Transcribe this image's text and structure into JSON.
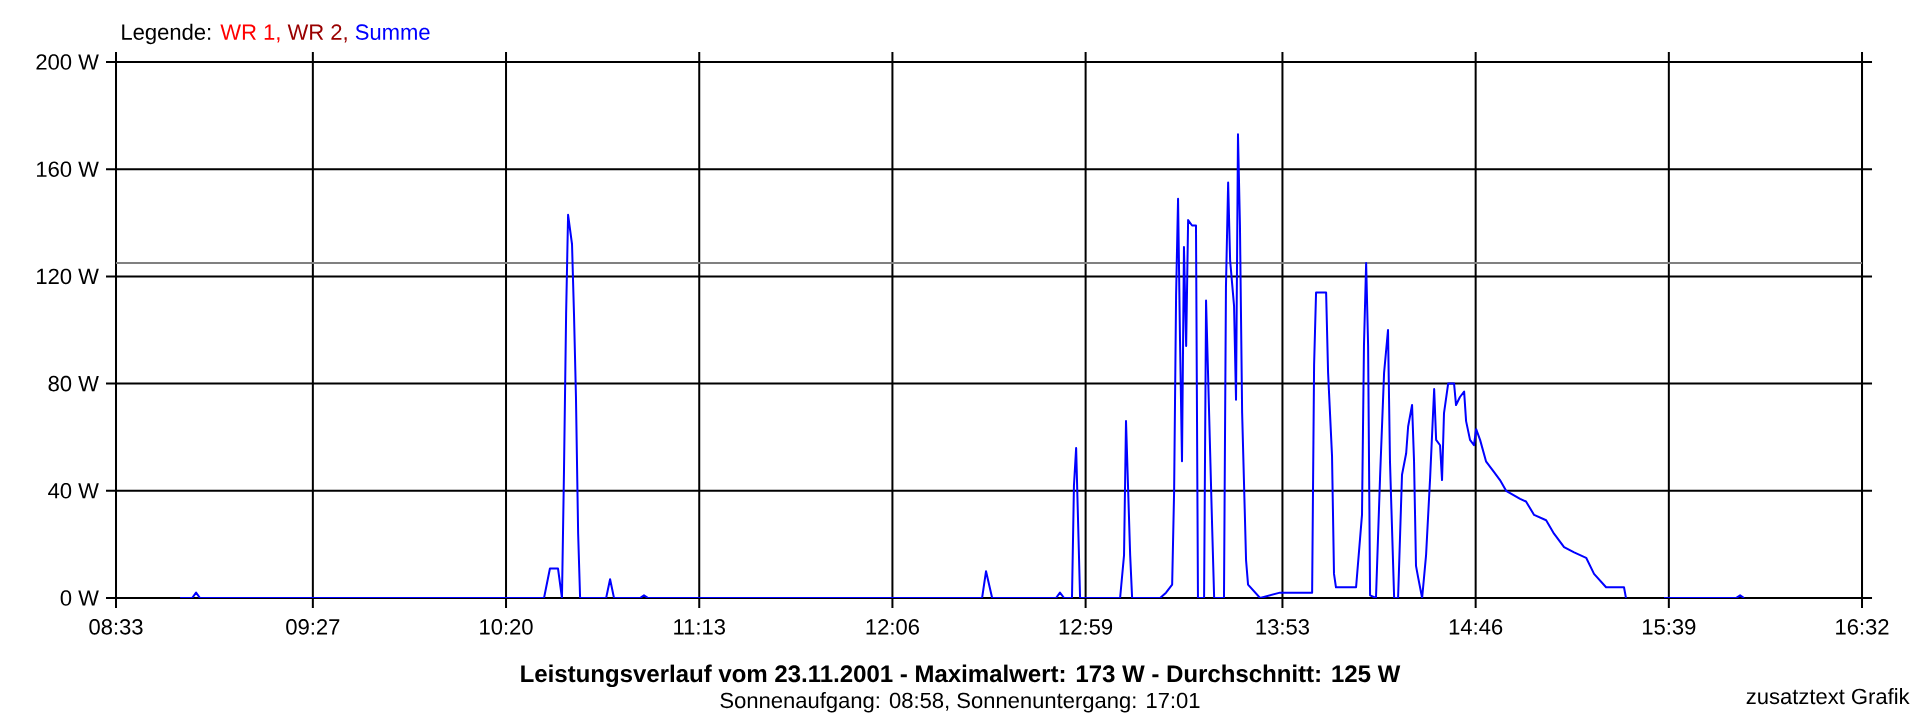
{
  "chart_data": {
    "type": "line",
    "title": "Leistungsverlauf vom 23.11.2001 - Maximalwert: 173 W - Durchschnitt: 125 W",
    "subtitle": "Sonnenaufgang: 08:58, Sonnenuntergang: 17:01",
    "annotations": [
      "zusatztext Grafik"
    ],
    "legend_title": "Legende:",
    "legend": "top left",
    "grid": true,
    "xlim": [
      8.55,
      16.5333
    ],
    "xticks": [
      {
        "value": 8.55,
        "label": "08:33"
      },
      {
        "value": 9.45,
        "label": "09:27"
      },
      {
        "value": 10.3333,
        "label": "10:20"
      },
      {
        "value": 11.2167,
        "label": "11:13"
      },
      {
        "value": 12.1,
        "label": "12:06"
      },
      {
        "value": 12.9833,
        "label": "12:59"
      },
      {
        "value": 13.8833,
        "label": "13:53"
      },
      {
        "value": 14.7667,
        "label": "14:46"
      },
      {
        "value": 15.65,
        "label": "15:39"
      },
      {
        "value": 16.5333,
        "label": "16:32"
      }
    ],
    "ylim": [
      0,
      200
    ],
    "yticks": [
      {
        "value": 0,
        "label": "0 W"
      },
      {
        "value": 40,
        "label": "40 W"
      },
      {
        "value": 80,
        "label": "80 W"
      },
      {
        "value": 120,
        "label": "120 W"
      },
      {
        "value": 160,
        "label": "160 W"
      },
      {
        "value": 200,
        "label": "200 W"
      }
    ],
    "ref_lines": [
      {
        "axis": "y",
        "value": 125,
        "color": "#808080"
      }
    ],
    "series": [
      {
        "name": "WR 1,",
        "color": "#ff0000"
      },
      {
        "name": "WR 2,",
        "color": "#990000"
      },
      {
        "name": "Summe",
        "color": "#0000ff",
        "x": [
          8.843,
          8.898,
          8.916,
          8.934,
          10.507,
          10.534,
          10.571,
          10.589,
          10.598,
          10.608,
          10.617,
          10.635,
          10.644,
          10.653,
          10.663,
          10.672,
          10.791,
          10.809,
          10.827,
          10.946,
          10.964,
          10.983,
          12.51,
          12.528,
          12.556,
          12.848,
          12.866,
          12.885,
          12.921,
          12.93,
          12.94,
          12.949,
          12.958,
          13.141,
          13.159,
          13.168,
          13.187,
          13.196,
          13.324,
          13.351,
          13.379,
          13.388,
          13.397,
          13.406,
          13.415,
          13.424,
          13.433,
          13.443,
          13.452,
          13.47,
          13.488,
          13.497,
          13.525,
          13.534,
          13.543,
          13.561,
          13.571,
          13.616,
          13.625,
          13.635,
          13.644,
          13.662,
          13.671,
          13.68,
          13.689,
          13.699,
          13.717,
          13.726,
          13.781,
          13.872,
          13.964,
          14.019,
          14.028,
          14.037,
          14.083,
          14.092,
          14.11,
          14.119,
          14.128,
          14.22,
          14.247,
          14.256,
          14.266,
          14.275,
          14.284,
          14.311,
          14.33,
          14.348,
          14.366,
          14.375,
          14.394,
          14.412,
          14.43,
          14.449,
          14.458,
          14.476,
          14.485,
          14.494,
          14.503,
          14.522,
          14.54,
          14.558,
          14.577,
          14.586,
          14.604,
          14.613,
          14.622,
          14.641,
          14.668,
          14.677,
          14.695,
          14.714,
          14.723,
          14.741,
          14.759,
          14.769,
          14.787,
          14.814,
          14.851,
          14.878,
          14.906,
          14.97,
          14.997,
          15.034,
          15.089,
          15.125,
          15.171,
          15.217,
          15.272,
          15.308,
          15.363,
          15.445,
          15.454,
          15.5,
          15.628,
          15.957,
          15.976,
          15.994
        ],
        "values": [
          0,
          0,
          2,
          0,
          0,
          11,
          11,
          0,
          46,
          106,
          143,
          132,
          106,
          75,
          24,
          0,
          0,
          7,
          0,
          0,
          1,
          0,
          0,
          10,
          0,
          0,
          2,
          0,
          0,
          42,
          56,
          28,
          0,
          0,
          16,
          66,
          16,
          0,
          0,
          2,
          5,
          40,
          113,
          149,
          96,
          51,
          131,
          94,
          141,
          139,
          139,
          0,
          0,
          111,
          84,
          29,
          0,
          0,
          116,
          155,
          126,
          109,
          74,
          173,
          139,
          69,
          14,
          5,
          0,
          2,
          2,
          2,
          87,
          114,
          114,
          84,
          53,
          9,
          4,
          4,
          31,
          94,
          125,
          94,
          1,
          0,
          46,
          84,
          100,
          51,
          0,
          0,
          46,
          54,
          64,
          72,
          51,
          12,
          8,
          0,
          16,
          44,
          78,
          59,
          57,
          44,
          69,
          80,
          80,
          72,
          75,
          77,
          66,
          59,
          57,
          63,
          59,
          51,
          47,
          44,
          40,
          37,
          36,
          31,
          29,
          24,
          19,
          17,
          15,
          9,
          4,
          4,
          0,
          null,
          0,
          0,
          1,
          0
        ]
      }
    ]
  }
}
